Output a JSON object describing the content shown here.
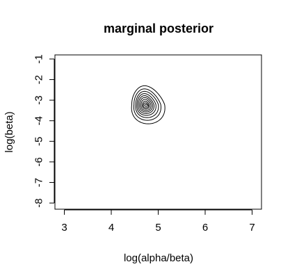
{
  "chart_data": {
    "type": "contour",
    "title": "marginal posterior",
    "xlabel": "log(alpha/beta)",
    "ylabel": "log(beta)",
    "xlim": [
      2.8,
      7.2
    ],
    "ylim": [
      -8.3,
      -0.8
    ],
    "x_ticks": [
      3,
      4,
      5,
      6,
      7
    ],
    "y_ticks": [
      -1,
      -2,
      -3,
      -4,
      -5,
      -6,
      -7,
      -8
    ],
    "grid": false,
    "legend": "none",
    "mode": {
      "x": 4.74,
      "y": -3.25
    },
    "contour_levels": [
      0.05,
      0.15,
      0.25,
      0.35,
      0.45,
      0.55,
      0.65,
      0.75,
      0.85,
      0.95
    ],
    "contours": [
      {
        "level": 0.05,
        "x_min": 4.42,
        "x_max": 5.12,
        "y_min": -4.15,
        "y_max": -2.3
      },
      {
        "level": 0.15,
        "x_min": 4.47,
        "x_max": 5.04,
        "y_min": -3.98,
        "y_max": -2.45
      },
      {
        "level": 0.25,
        "x_min": 4.51,
        "x_max": 4.99,
        "y_min": -3.85,
        "y_max": -2.57
      },
      {
        "level": 0.35,
        "x_min": 4.54,
        "x_max": 4.94,
        "y_min": -3.74,
        "y_max": -2.68
      },
      {
        "level": 0.45,
        "x_min": 4.57,
        "x_max": 4.9,
        "y_min": -3.65,
        "y_max": -2.78
      },
      {
        "level": 0.55,
        "x_min": 4.6,
        "x_max": 4.87,
        "y_min": -3.57,
        "y_max": -2.87
      },
      {
        "level": 0.65,
        "x_min": 4.63,
        "x_max": 4.84,
        "y_min": -3.5,
        "y_max": -2.96
      },
      {
        "level": 0.75,
        "x_min": 4.66,
        "x_max": 4.81,
        "y_min": -3.43,
        "y_max": -3.05
      },
      {
        "level": 0.85,
        "x_min": 4.68,
        "x_max": 4.79,
        "y_min": -3.37,
        "y_max": -3.13
      },
      {
        "level": 0.95,
        "x_min": 4.71,
        "x_max": 4.77,
        "y_min": -3.3,
        "y_max": -3.2
      }
    ]
  }
}
